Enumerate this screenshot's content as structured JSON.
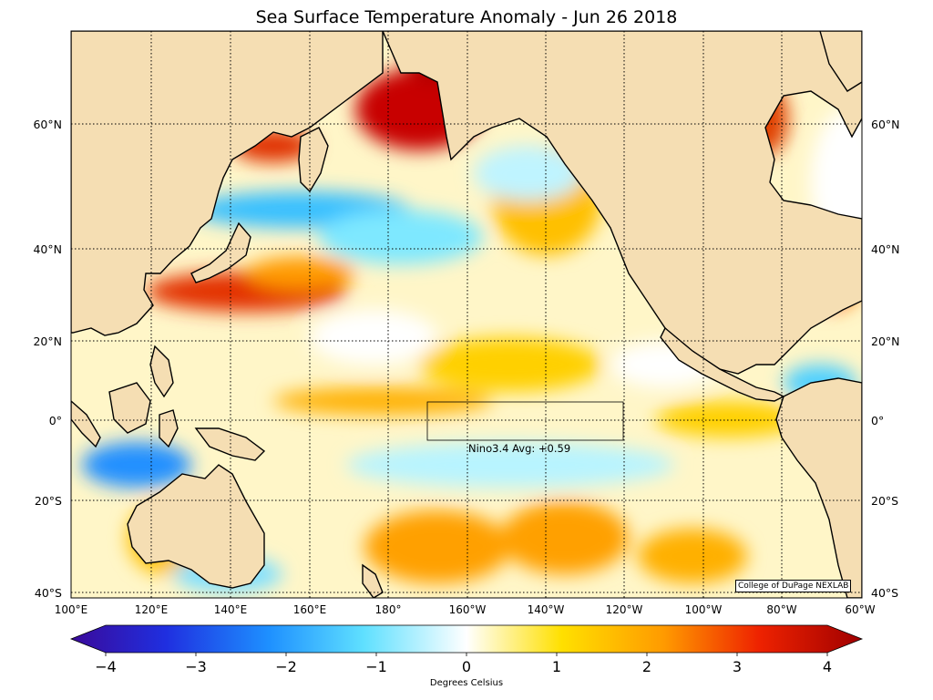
{
  "title": "Sea Surface Temperature Anomaly - Jun 26 2018",
  "lat_labels": [
    "60°N",
    "40°N",
    "20°N",
    "0°",
    "20°S",
    "40°S"
  ],
  "lon_labels": [
    "100°E",
    "120°E",
    "140°E",
    "160°E",
    "180°",
    "160°W",
    "140°W",
    "120°W",
    "100°W",
    "80°W",
    "60°W"
  ],
  "nino_label": "Nino3.4 Avg: +0.59",
  "credit": "College of DuPage NEXLAB",
  "colorbar": {
    "ticks": [
      "−4",
      "−3",
      "−2",
      "−1",
      "0",
      "1",
      "2",
      "3",
      "4"
    ],
    "label": "Degrees Celsius",
    "colors": [
      "#3a0a9a",
      "#1f2fe0",
      "#1e90ff",
      "#5fe0ff",
      "#ffffff",
      "#ffe000",
      "#ff9a00",
      "#ee2200",
      "#a00000"
    ]
  },
  "colors": {
    "land": "#f5deb3",
    "ocean": "#fff8dc",
    "warm": "#d40000",
    "cool": "#33b5ff"
  }
}
